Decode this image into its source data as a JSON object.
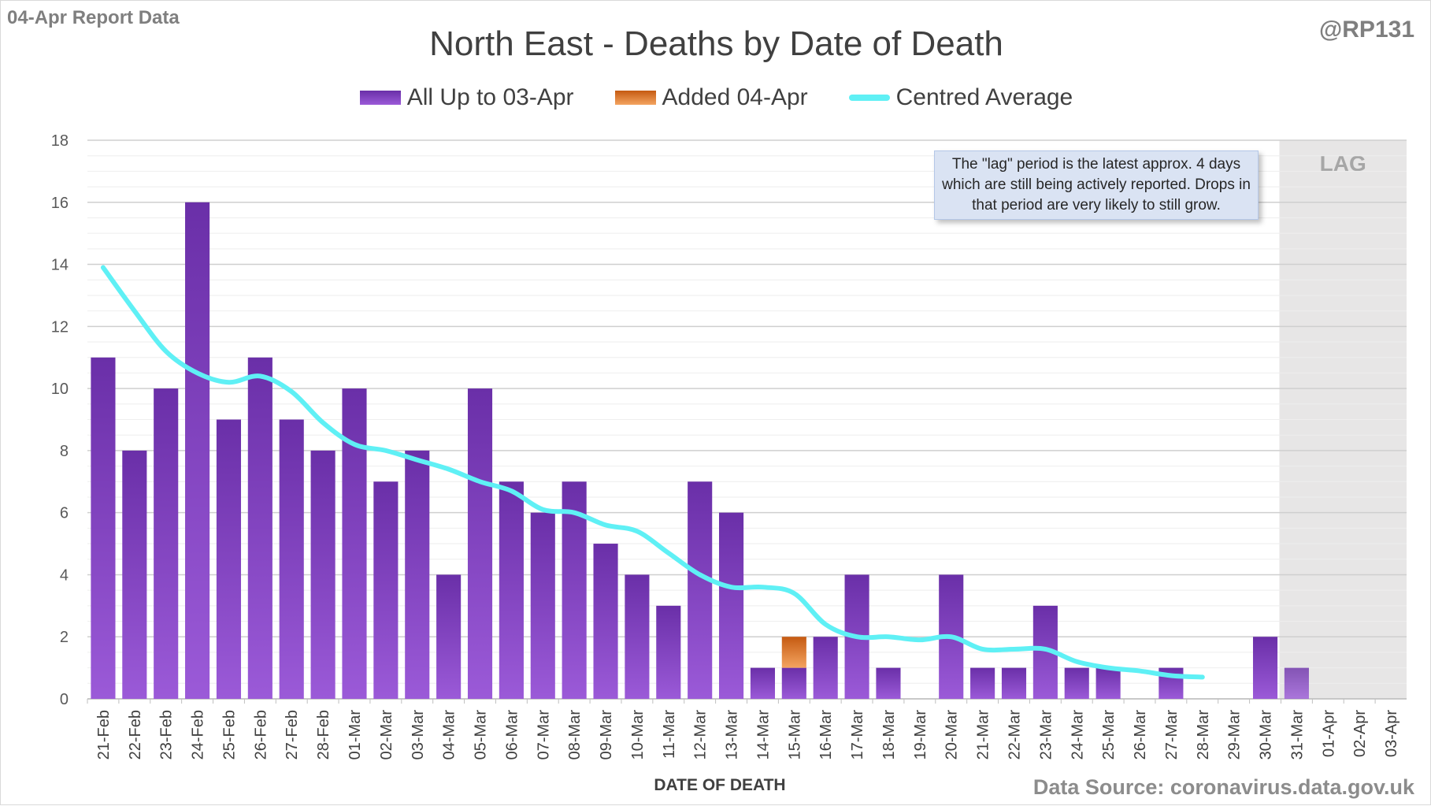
{
  "report_label": "04-Apr Report Data",
  "author": "@RP131",
  "source": "Data Source: coronavirus.data.gov.uk",
  "callout_text": "The \"lag\" period is the latest approx. 4 days which are still being actively reported. Drops in that period are very likely to still grow.",
  "lag_label": "LAG",
  "colors": {
    "bar_top": "#6a2fa8",
    "bar_bottom": "#9b5ad8",
    "added_top": "#c55a11",
    "added_bottom": "#f4a460",
    "average": "#5ff0f5",
    "lag_shade": "#e7e6e6",
    "grid": "#d9d9d9"
  },
  "chart_data": {
    "type": "bar",
    "title": "North East - Deaths by Date of Death",
    "xlabel": "DATE OF DEATH",
    "ylabel": "",
    "ylim": [
      0,
      18
    ],
    "yticks": [
      0,
      2,
      4,
      6,
      8,
      10,
      12,
      14,
      16,
      18
    ],
    "legend_position": "top-center",
    "categories": [
      "21-Feb",
      "22-Feb",
      "23-Feb",
      "24-Feb",
      "25-Feb",
      "26-Feb",
      "27-Feb",
      "28-Feb",
      "01-Mar",
      "02-Mar",
      "03-Mar",
      "04-Mar",
      "05-Mar",
      "06-Mar",
      "07-Mar",
      "08-Mar",
      "09-Mar",
      "10-Mar",
      "11-Mar",
      "12-Mar",
      "13-Mar",
      "14-Mar",
      "15-Mar",
      "16-Mar",
      "17-Mar",
      "18-Mar",
      "19-Mar",
      "20-Mar",
      "21-Mar",
      "22-Mar",
      "23-Mar",
      "24-Mar",
      "25-Mar",
      "26-Mar",
      "27-Mar",
      "28-Mar",
      "29-Mar",
      "30-Mar",
      "31-Mar",
      "01-Apr",
      "02-Apr",
      "03-Apr"
    ],
    "series": [
      {
        "name": "All Up to 03-Apr",
        "kind": "bar",
        "values": [
          11,
          8,
          10,
          16,
          9,
          11,
          9,
          8,
          10,
          7,
          8,
          4,
          10,
          7,
          6,
          7,
          5,
          4,
          3,
          7,
          6,
          1,
          1,
          2,
          4,
          1,
          0,
          4,
          1,
          1,
          3,
          1,
          1,
          0,
          1,
          0,
          0,
          2,
          1,
          0,
          0,
          0
        ]
      },
      {
        "name": "Added 04-Apr",
        "kind": "bar-stacked",
        "values": [
          0,
          0,
          0,
          0,
          0,
          0,
          0,
          0,
          0,
          0,
          0,
          0,
          0,
          0,
          0,
          0,
          0,
          0,
          0,
          0,
          0,
          0,
          1,
          0,
          0,
          0,
          0,
          0,
          0,
          0,
          0,
          0,
          0,
          0,
          0,
          0,
          0,
          0,
          0,
          0,
          0,
          0
        ]
      },
      {
        "name": "Centred Average",
        "kind": "line",
        "values": [
          13.9,
          12.5,
          11.2,
          10.5,
          10.2,
          10.4,
          9.9,
          8.9,
          8.2,
          8.0,
          7.7,
          7.4,
          7.0,
          6.7,
          6.1,
          6.0,
          5.6,
          5.4,
          4.7,
          4.0,
          3.6,
          3.6,
          3.4,
          2.4,
          2.0,
          2.0,
          1.9,
          2.0,
          1.6,
          1.6,
          1.6,
          1.2,
          1.0,
          0.9,
          0.75,
          0.7,
          null,
          null,
          null,
          null,
          null,
          null
        ]
      }
    ],
    "lag_categories": [
      "31-Mar",
      "01-Apr",
      "02-Apr",
      "03-Apr"
    ]
  }
}
